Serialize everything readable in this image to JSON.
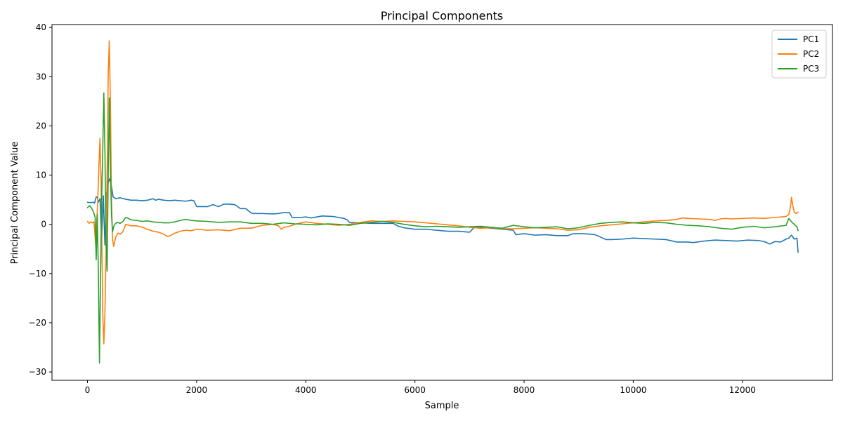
{
  "chart_data": {
    "type": "line",
    "title": "Principal Components",
    "xlabel": "Sample",
    "ylabel": "Principal Component Value",
    "xlim": [
      -650,
      13650
    ],
    "ylim": [
      -31.7,
      40.6
    ],
    "xticks": [
      0,
      2000,
      4000,
      6000,
      8000,
      10000,
      12000
    ],
    "xtick_labels": [
      "0",
      "2000",
      "4000",
      "6000",
      "8000",
      "10000",
      "12000"
    ],
    "yticks": [
      -30,
      -20,
      -10,
      0,
      10,
      20,
      30,
      40
    ],
    "ytick_labels": [
      "−30",
      "−20",
      "−10",
      "0",
      "10",
      "20",
      "30",
      "40"
    ],
    "grid": false,
    "legend_position": "top-right",
    "series": [
      {
        "name": "PC1",
        "color": "#1f77b4",
        "x": [
          0,
          50,
          100,
          130,
          160,
          180,
          200,
          230,
          260,
          290,
          320,
          350,
          380,
          410,
          440,
          470,
          520,
          600,
          700,
          800,
          900,
          1000,
          1100,
          1200,
          1250,
          1300,
          1400,
          1500,
          1600,
          1700,
          1800,
          1900,
          1950,
          2000,
          2100,
          2200,
          2300,
          2400,
          2500,
          2600,
          2700,
          2800,
          2900,
          3000,
          3050,
          3200,
          3400,
          3500,
          3600,
          3700,
          3750,
          3900,
          4000,
          4100,
          4300,
          4500,
          4700,
          4760,
          4800,
          5000,
          5200,
          5400,
          5600,
          5700,
          5800,
          6000,
          6200,
          6400,
          6600,
          6800,
          7000,
          7100,
          7200,
          7400,
          7600,
          7800,
          7850,
          8000,
          8200,
          8400,
          8600,
          8800,
          8900,
          9100,
          9300,
          9400,
          9500,
          9600,
          9800,
          10000,
          10200,
          10400,
          10600,
          10800,
          11000,
          11100,
          11300,
          11500,
          11700,
          11900,
          12100,
          12300,
          12400,
          12500,
          12600,
          12700,
          12800,
          12850,
          12900,
          12950,
          13000,
          13020
        ],
        "y": [
          4.5,
          4.4,
          4.5,
          4.3,
          5.6,
          5.5,
          4.5,
          5.2,
          -3.5,
          5.8,
          -4.2,
          6.2,
          8.5,
          9.3,
          7.8,
          5.6,
          5.2,
          5.4,
          5.1,
          4.9,
          4.9,
          4.8,
          4.9,
          5.2,
          4.9,
          5.1,
          4.9,
          4.8,
          4.9,
          4.8,
          4.7,
          4.9,
          4.8,
          3.6,
          3.6,
          3.6,
          4.0,
          3.6,
          4.1,
          4.1,
          4.0,
          3.2,
          3.2,
          2.3,
          2.2,
          2.2,
          2.1,
          2.2,
          2.4,
          2.4,
          1.4,
          1.4,
          1.5,
          1.3,
          1.7,
          1.6,
          1.2,
          0.9,
          0.4,
          0.3,
          0.2,
          0.2,
          0.2,
          -0.4,
          -0.7,
          -1.0,
          -1.0,
          -1.2,
          -1.4,
          -1.4,
          -1.6,
          -0.5,
          -0.6,
          -0.8,
          -1.0,
          -1.2,
          -2.1,
          -1.9,
          -2.2,
          -2.1,
          -2.3,
          -2.3,
          -1.9,
          -1.9,
          -2.1,
          -2.6,
          -3.1,
          -3.1,
          -3.0,
          -2.8,
          -2.9,
          -3.0,
          -3.1,
          -3.6,
          -3.6,
          -3.7,
          -3.4,
          -3.2,
          -3.3,
          -3.4,
          -3.2,
          -3.3,
          -3.5,
          -4.0,
          -3.5,
          -3.6,
          -3.0,
          -2.8,
          -2.2,
          -3.0,
          -2.8,
          -5.7
        ]
      },
      {
        "name": "PC2",
        "color": "#ff7f0e",
        "x": [
          0,
          30,
          60,
          90,
          120,
          150,
          170,
          190,
          210,
          230,
          250,
          280,
          300,
          320,
          340,
          360,
          380,
          400,
          420,
          440,
          460,
          480,
          500,
          520,
          560,
          600,
          650,
          700,
          800,
          900,
          1000,
          1100,
          1200,
          1300,
          1400,
          1450,
          1500,
          1600,
          1700,
          1800,
          1900,
          2000,
          2200,
          2400,
          2600,
          2800,
          3000,
          3200,
          3400,
          3500,
          3550,
          3600,
          3700,
          3800,
          4000,
          4200,
          4400,
          4600,
          4800,
          5000,
          5200,
          5400,
          5600,
          5800,
          6000,
          6200,
          6400,
          6600,
          6800,
          7000,
          7200,
          7400,
          7600,
          7800,
          8000,
          8200,
          8400,
          8600,
          8800,
          9000,
          9200,
          9400,
          9600,
          9800,
          10000,
          10200,
          10400,
          10600,
          10800,
          10900,
          11000,
          11200,
          11400,
          11500,
          11600,
          11700,
          11800,
          12000,
          12200,
          12400,
          12600,
          12800,
          12850,
          12880,
          12900,
          12920,
          12950,
          12980,
          13020
        ],
        "y": [
          0.6,
          0.2,
          0.5,
          0.3,
          0.5,
          -4.2,
          0.6,
          5.0,
          12.0,
          17.5,
          8.0,
          -18.0,
          -24.3,
          -18.0,
          -6.0,
          10.0,
          30.0,
          37.3,
          25.0,
          5.0,
          -3.0,
          -4.5,
          -3.5,
          -2.5,
          -1.8,
          -2.0,
          -1.5,
          0.0,
          -0.3,
          -0.3,
          -0.6,
          -1.0,
          -1.4,
          -1.6,
          -2.0,
          -2.4,
          -2.4,
          -1.8,
          -1.4,
          -1.2,
          -1.3,
          -1.0,
          -1.2,
          -1.1,
          -1.3,
          -0.8,
          -0.8,
          -0.2,
          0.0,
          -0.3,
          -1.0,
          -0.6,
          -0.4,
          0.0,
          0.5,
          0.2,
          0.0,
          -0.2,
          0.0,
          0.4,
          0.7,
          0.6,
          0.7,
          0.6,
          0.5,
          0.3,
          0.1,
          -0.1,
          -0.3,
          -0.6,
          -0.8,
          -0.7,
          -0.9,
          -0.9,
          -0.8,
          -0.7,
          -0.8,
          -0.9,
          -1.2,
          -1.1,
          -0.6,
          -0.3,
          -0.1,
          0.1,
          0.3,
          0.5,
          0.7,
          0.8,
          1.0,
          1.3,
          1.2,
          1.1,
          1.0,
          0.8,
          1.1,
          1.2,
          1.1,
          1.2,
          1.3,
          1.2,
          1.4,
          1.6,
          2.0,
          3.5,
          5.5,
          4.0,
          2.5,
          2.2,
          2.5
        ]
      },
      {
        "name": "PC3",
        "color": "#2ca02c",
        "x": [
          0,
          40,
          80,
          110,
          140,
          160,
          180,
          200,
          220,
          240,
          260,
          280,
          300,
          320,
          340,
          360,
          380,
          400,
          420,
          440,
          460,
          480,
          500,
          540,
          600,
          650,
          700,
          750,
          800,
          900,
          1000,
          1100,
          1200,
          1300,
          1400,
          1500,
          1600,
          1700,
          1800,
          1900,
          2000,
          2200,
          2400,
          2600,
          2800,
          3000,
          3200,
          3400,
          3600,
          3800,
          4000,
          4200,
          4400,
          4600,
          4800,
          5000,
          5200,
          5400,
          5600,
          5800,
          6000,
          6200,
          6400,
          6600,
          6800,
          7000,
          7200,
          7400,
          7600,
          7800,
          8000,
          8200,
          8400,
          8600,
          8800,
          9000,
          9200,
          9400,
          9600,
          9800,
          10000,
          10200,
          10400,
          10600,
          10800,
          11000,
          11200,
          11400,
          11600,
          11800,
          12000,
          12200,
          12400,
          12600,
          12800,
          12850,
          12900,
          12950,
          13000,
          13020
        ],
        "y": [
          3.4,
          3.8,
          3.2,
          2.5,
          1.5,
          -7.2,
          2.0,
          -10.0,
          -28.2,
          -10.0,
          5.0,
          15.0,
          26.7,
          15.0,
          -3.0,
          -9.5,
          10.0,
          25.7,
          12.0,
          2.0,
          -1.5,
          -0.5,
          0.0,
          0.4,
          0.2,
          0.6,
          1.4,
          1.2,
          0.9,
          0.8,
          0.6,
          0.7,
          0.5,
          0.4,
          0.3,
          0.3,
          0.5,
          0.8,
          1.0,
          0.8,
          0.7,
          0.6,
          0.4,
          0.5,
          0.5,
          0.2,
          0.2,
          0.0,
          0.3,
          0.1,
          0.0,
          -0.1,
          0.1,
          0.0,
          -0.2,
          0.2,
          0.4,
          0.6,
          0.4,
          0.0,
          -0.3,
          -0.5,
          -0.4,
          -0.5,
          -0.6,
          -0.5,
          -0.4,
          -0.6,
          -0.8,
          -0.2,
          -0.5,
          -0.7,
          -0.6,
          -0.5,
          -0.9,
          -0.7,
          -0.2,
          0.2,
          0.4,
          0.5,
          0.3,
          0.2,
          0.4,
          0.3,
          0.0,
          -0.2,
          -0.3,
          -0.5,
          -0.8,
          -1.0,
          -0.6,
          -0.4,
          -0.7,
          -0.5,
          -0.2,
          1.2,
          0.5,
          0.0,
          -0.5,
          -1.3
        ]
      }
    ]
  }
}
